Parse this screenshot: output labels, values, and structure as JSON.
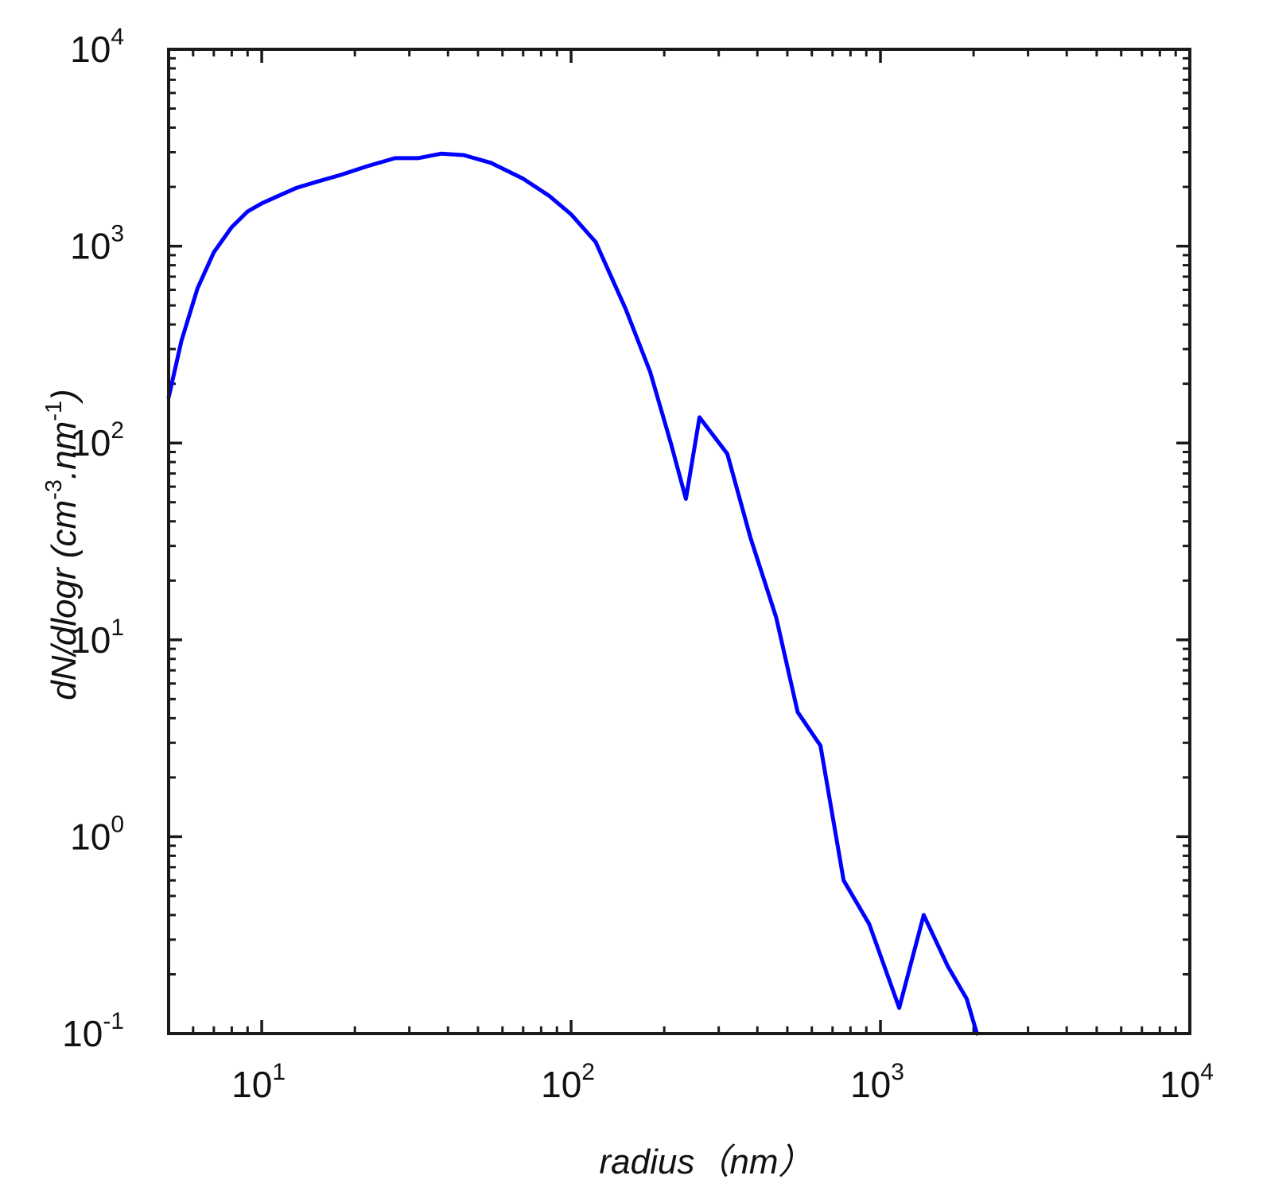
{
  "chart_data": {
    "type": "line",
    "title": "",
    "xlabel": "radius（nm）",
    "ylabel": {
      "main": "dN/dlogr (cm",
      "exp1": "-3",
      "mid": ".nm",
      "exp2": "-1",
      "close": ")"
    },
    "x_scale": "log",
    "y_scale": "log",
    "xlim": [
      5,
      10000
    ],
    "ylim": [
      0.1,
      10000
    ],
    "x_ticks": [
      {
        "base": "10",
        "exp": "1",
        "value": 10
      },
      {
        "base": "10",
        "exp": "2",
        "value": 100
      },
      {
        "base": "10",
        "exp": "3",
        "value": 1000
      },
      {
        "base": "10",
        "exp": "4",
        "value": 10000
      }
    ],
    "y_ticks": [
      {
        "base": "10",
        "exp": "-1",
        "value": 0.1
      },
      {
        "base": "10",
        "exp": "0",
        "value": 1
      },
      {
        "base": "10",
        "exp": "1",
        "value": 10
      },
      {
        "base": "10",
        "exp": "2",
        "value": 100
      },
      {
        "base": "10",
        "exp": "3",
        "value": 1000
      },
      {
        "base": "10",
        "exp": "4",
        "value": 10000
      }
    ],
    "grid": false,
    "series": [
      {
        "color": "#0000ff",
        "points": [
          [
            5.0,
            170
          ],
          [
            5.5,
            330
          ],
          [
            6.2,
            610
          ],
          [
            7.0,
            930
          ],
          [
            8.0,
            1250
          ],
          [
            9.0,
            1500
          ],
          [
            10.0,
            1650
          ],
          [
            11.5,
            1820
          ],
          [
            13.0,
            1980
          ],
          [
            15.0,
            2120
          ],
          [
            18.0,
            2300
          ],
          [
            22.0,
            2550
          ],
          [
            27.0,
            2800
          ],
          [
            32.0,
            2800
          ],
          [
            38.0,
            2950
          ],
          [
            45.0,
            2900
          ],
          [
            55.0,
            2650
          ],
          [
            70.0,
            2200
          ],
          [
            85.0,
            1800
          ],
          [
            100.0,
            1450
          ],
          [
            120.0,
            1050
          ],
          [
            150.0,
            480
          ],
          [
            180.0,
            230
          ],
          [
            210.0,
            100
          ],
          [
            235.0,
            52
          ],
          [
            260.0,
            135
          ],
          [
            320.0,
            88
          ],
          [
            380.0,
            33
          ],
          [
            460.0,
            13
          ],
          [
            540.0,
            4.3
          ],
          [
            640.0,
            2.9
          ],
          [
            760.0,
            0.6
          ],
          [
            920.0,
            0.36
          ],
          [
            1150.0,
            0.135
          ],
          [
            1380.0,
            0.4
          ],
          [
            1650.0,
            0.22
          ],
          [
            1900.0,
            0.15
          ],
          [
            2050.0,
            0.1
          ]
        ]
      }
    ]
  }
}
